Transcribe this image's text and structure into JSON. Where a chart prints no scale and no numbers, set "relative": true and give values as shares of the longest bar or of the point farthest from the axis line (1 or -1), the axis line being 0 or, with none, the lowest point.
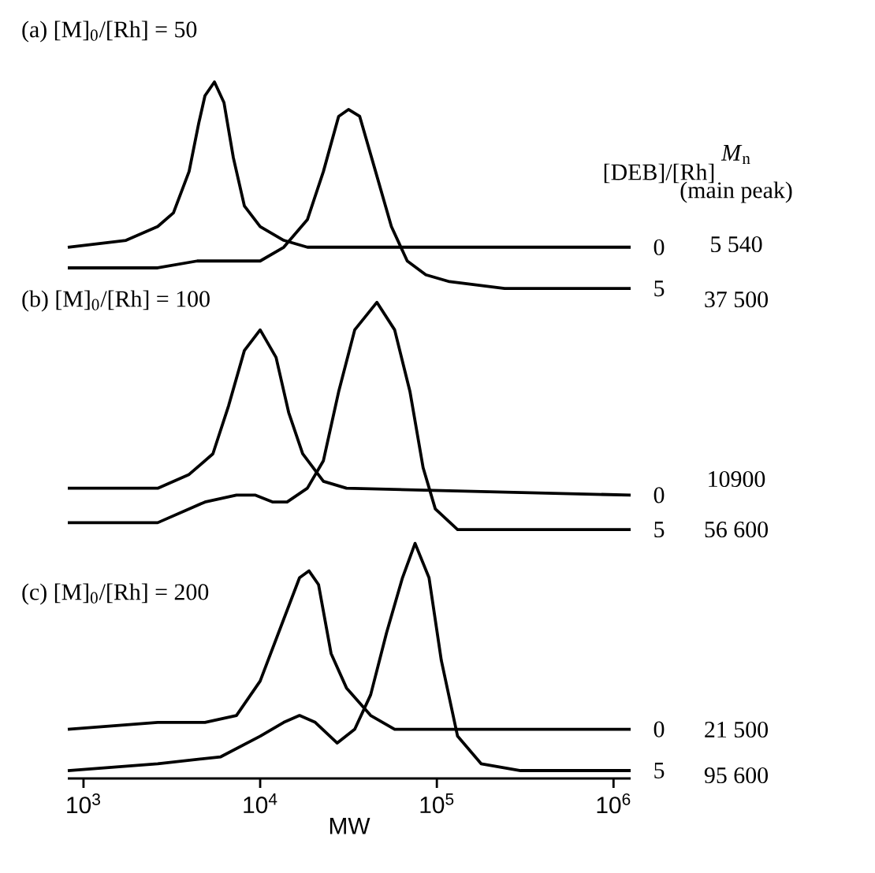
{
  "chart_data": {
    "type": "line",
    "relative": true,
    "log": "x",
    "xlim": [
      815,
      1250000
    ],
    "tick_labels": "x",
    "xlabel": "MW",
    "legend_title": "[DEB]/[Rh]",
    "xticks": [
      {
        "value": 1000,
        "label": "10$^{3}$"
      },
      {
        "value": 10000,
        "label": "10$^{4}$"
      },
      {
        "value": 100000,
        "label": "10$^{5}$"
      },
      {
        "value": 1000000,
        "label": "10$^{6}$"
      }
    ],
    "annotations": [
      "(a) [M]$_{0}$/[Rh] = 50",
      "(b) [M]$_{0}$/[Rh] = 100",
      "(c) [M]$_{0}$/[Rh] = 200",
      "*M*$_{n}$",
      "(main peak)",
      "5 540",
      "37 500",
      "10900",
      "56 600",
      "21 500",
      "95 600"
    ],
    "series": [
      {
        "name": "0",
        "color": "#000000",
        "x": [
          815,
          1740,
          2630,
          3230,
          3960,
          4490,
          4870,
          5510,
          6240,
          7050,
          8140,
          10000,
          13600,
          18500,
          1250000
        ],
        "values": [
          0.76,
          0.77,
          0.79,
          0.81,
          0.87,
          0.94,
          0.98,
          1.0,
          0.97,
          0.89,
          0.82,
          0.79,
          0.77,
          0.76,
          0.76
        ]
      },
      {
        "name": "5",
        "color": "#000000",
        "x": [
          815,
          2630,
          4400,
          5510,
          7340,
          10000,
          13600,
          18500,
          22800,
          27800,
          31600,
          36600,
          45000,
          55300,
          68000,
          86600,
          118000,
          242000,
          1250000
        ],
        "values": [
          0.73,
          0.73,
          0.74,
          0.74,
          0.74,
          0.74,
          0.76,
          0.8,
          0.87,
          0.95,
          0.96,
          0.95,
          0.87,
          0.79,
          0.74,
          0.72,
          0.71,
          0.7,
          0.7
        ]
      },
      {
        "name": "0",
        "color": "#000000",
        "x": [
          815,
          2630,
          3960,
          5400,
          6630,
          8140,
          10000,
          12300,
          14500,
          17400,
          22800,
          30800,
          1250000
        ],
        "values": [
          0.41,
          0.41,
          0.43,
          0.46,
          0.53,
          0.61,
          0.64,
          0.6,
          0.52,
          0.46,
          0.42,
          0.41,
          0.4
        ]
      },
      {
        "name": "5",
        "color": "#000000",
        "x": [
          815,
          2630,
          4870,
          7340,
          9410,
          11800,
          14200,
          18500,
          22800,
          27800,
          34300,
          45800,
          57700,
          70500,
          83600,
          98000,
          131000,
          298000,
          1250000
        ],
        "values": [
          0.36,
          0.36,
          0.39,
          0.4,
          0.4,
          0.39,
          0.39,
          0.41,
          0.45,
          0.55,
          0.64,
          0.68,
          0.64,
          0.55,
          0.44,
          0.38,
          0.35,
          0.35,
          0.35
        ]
      },
      {
        "name": "0",
        "color": "#000000",
        "x": [
          815,
          2630,
          4870,
          7340,
          10000,
          13600,
          16700,
          18900,
          21400,
          25200,
          30800,
          42200,
          57700,
          86600,
          1250000
        ],
        "values": [
          0.06,
          0.07,
          0.07,
          0.08,
          0.13,
          0.22,
          0.28,
          0.29,
          0.27,
          0.17,
          0.12,
          0.08,
          0.06,
          0.06,
          0.06
        ]
      },
      {
        "name": "5",
        "color": "#000000",
        "x": [
          815,
          2630,
          5980,
          10000,
          13600,
          16700,
          20500,
          27300,
          34300,
          42200,
          51900,
          63900,
          75300,
          90300,
          106000,
          131000,
          178000,
          298000,
          1250000
        ],
        "values": [
          0,
          0.01,
          0.02,
          0.05,
          0.07,
          0.08,
          0.07,
          0.04,
          0.06,
          0.11,
          0.2,
          0.28,
          0.33,
          0.28,
          0.16,
          0.05,
          0.01,
          0,
          0
        ]
      }
    ]
  }
}
